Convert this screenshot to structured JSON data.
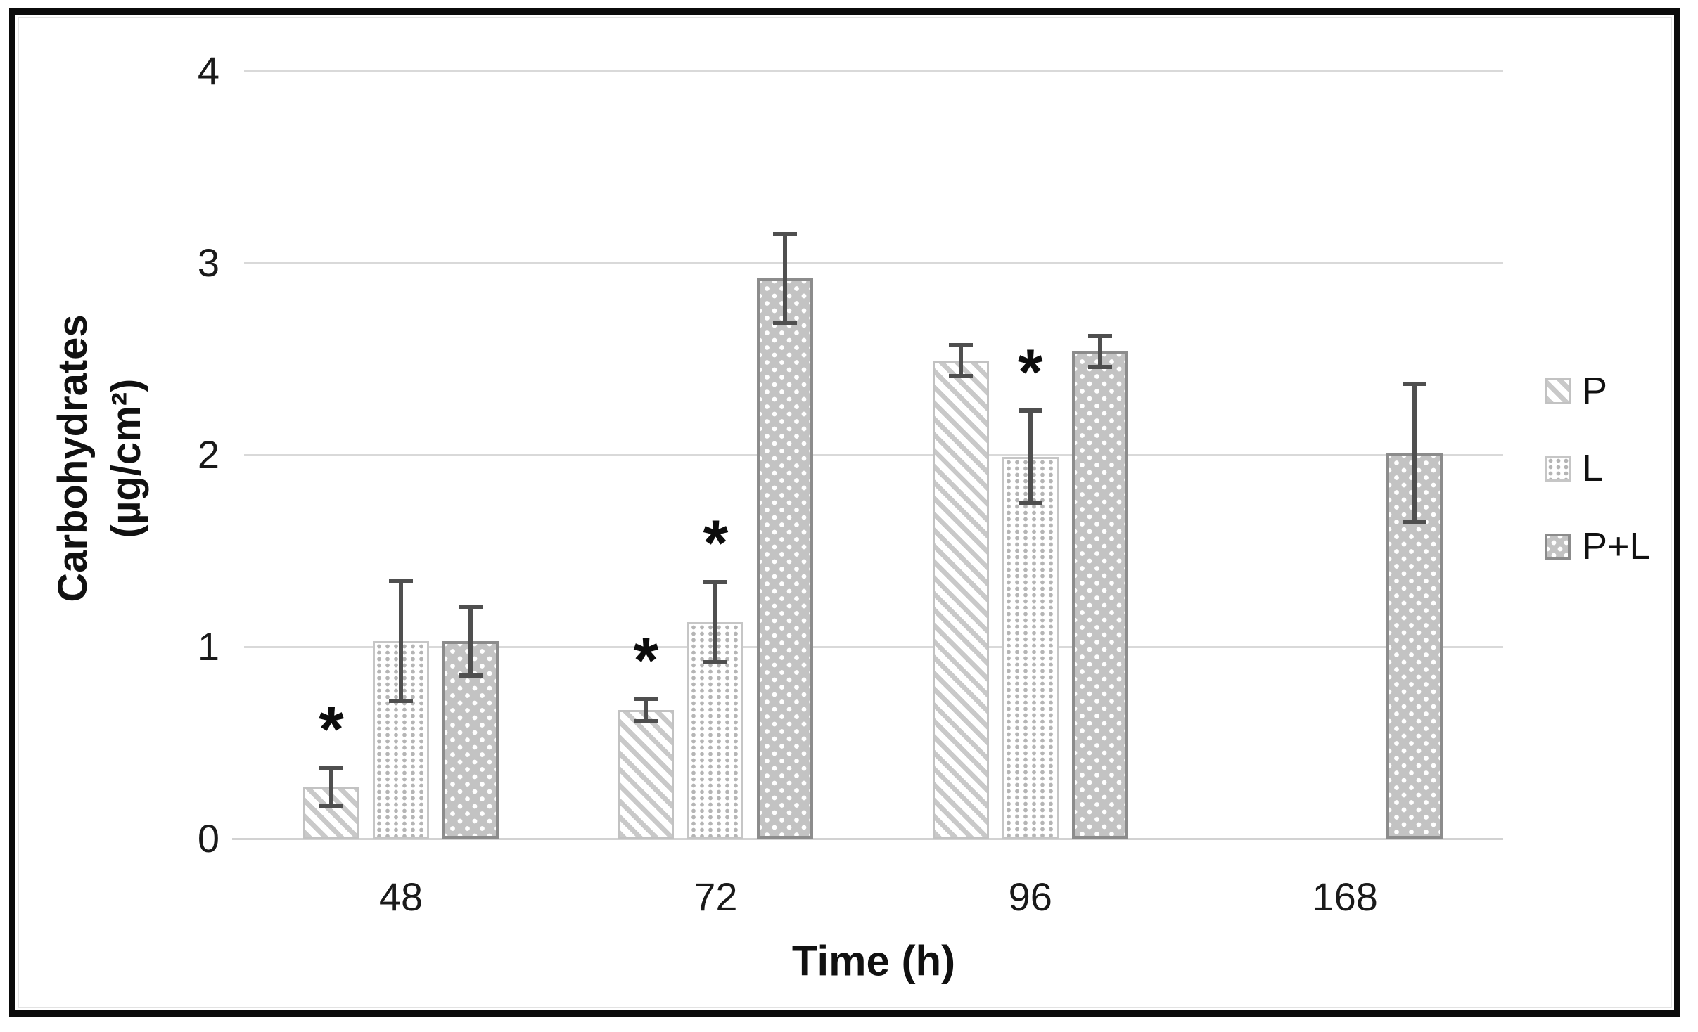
{
  "figure": {
    "border_color": "#0b0b0b",
    "background": "#ffffff"
  },
  "chart_data": {
    "type": "bar",
    "title": "",
    "xlabel": "Time (h)",
    "ylabel_line1": "Carbohydrates",
    "ylabel_line2": "(µg/cm²)",
    "categories": [
      "48",
      "72",
      "96",
      "168"
    ],
    "y_ticks": [
      0,
      1,
      2,
      3,
      4
    ],
    "ylim": [
      0,
      4
    ],
    "grid": true,
    "legend_position": "right",
    "series": [
      {
        "name": "P",
        "key": "diag",
        "pattern": "diagonal-hatch",
        "values": [
          0.27,
          0.67,
          2.49,
          null
        ],
        "errors": [
          0.1,
          0.06,
          0.08,
          null
        ]
      },
      {
        "name": "L",
        "key": "dots",
        "pattern": "small-gray-dots-on-white",
        "values": [
          1.03,
          1.13,
          1.99,
          null
        ],
        "errors": [
          0.31,
          0.21,
          0.24,
          null
        ]
      },
      {
        "name": "P+L",
        "key": "graydots",
        "pattern": "white-dots-on-gray",
        "values": [
          1.03,
          2.92,
          2.54,
          2.01
        ],
        "errors": [
          0.18,
          0.23,
          0.08,
          0.36
        ]
      }
    ],
    "significance_marks": [
      {
        "category": "48",
        "series": "P",
        "symbol": "*"
      },
      {
        "category": "72",
        "series": "P",
        "symbol": "*"
      },
      {
        "category": "72",
        "series": "L",
        "symbol": "*"
      },
      {
        "category": "96",
        "series": "L",
        "symbol": "*"
      }
    ],
    "colors": {
      "gridline": "#d9d9d9",
      "axis_line": "#d2d2d2",
      "error_bar": "#4f4f4f",
      "text": "#111111",
      "p_hatch": "#c9c9c9",
      "l_dot": "#b5b5b5",
      "pl_fill": "#c3c3c3",
      "pl_border": "#8c8c8c"
    }
  }
}
